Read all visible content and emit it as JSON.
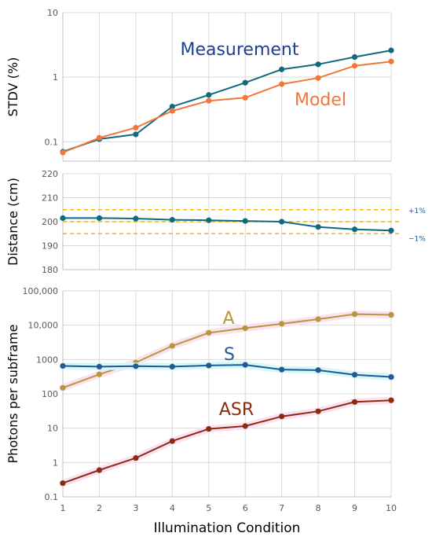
{
  "chart_data": [
    {
      "type": "line",
      "ylabel": "STDV (%)",
      "xlabel": "",
      "yscale": "log",
      "ylim": [
        0.05,
        10
      ],
      "yticks": [
        0.1,
        1,
        10
      ],
      "ytick_labels": [
        "0.1",
        "1",
        "10"
      ],
      "x": [
        1,
        2,
        3,
        4,
        5,
        6,
        7,
        8,
        9,
        10
      ],
      "series": [
        {
          "name": "Measurement",
          "color": "#0f6a80",
          "values": [
            0.07,
            0.11,
            0.13,
            0.35,
            0.53,
            0.82,
            1.32,
            1.58,
            2.05,
            2.6
          ]
        },
        {
          "name": "Model",
          "color": "#f4773a",
          "values": [
            0.068,
            0.115,
            0.165,
            0.3,
            0.43,
            0.48,
            0.78,
            0.97,
            1.5,
            1.75
          ]
        }
      ],
      "annotations": [
        "Measurement",
        "Model"
      ],
      "grid": true
    },
    {
      "type": "line",
      "ylabel": "Distance (cm)",
      "xlabel": "",
      "ylim": [
        180,
        220
      ],
      "yticks": [
        180,
        190,
        200,
        210,
        220
      ],
      "ytick_labels": [
        "180",
        "190",
        "200",
        "210",
        "220"
      ],
      "x": [
        1,
        2,
        3,
        4,
        5,
        6,
        7,
        8,
        9,
        10
      ],
      "series": [
        {
          "color": "#0f6a80",
          "values": [
            201.5,
            201.5,
            201.3,
            200.8,
            200.6,
            200.3,
            200.0,
            197.8,
            196.8,
            196.3
          ]
        }
      ],
      "reference_lines": [
        {
          "value": 205,
          "label": "+1%",
          "color": "#f4b400",
          "style": "dashed"
        },
        {
          "value": 200,
          "label": "",
          "color": "#f4b400",
          "style": "dashed"
        },
        {
          "value": 195,
          "label": "−1%",
          "color": "#f4b400",
          "style": "dashed"
        }
      ],
      "grid": true
    },
    {
      "type": "line",
      "ylabel": "Photons per subframe",
      "xlabel": "Illumination Condition",
      "yscale": "log",
      "ylim": [
        0.1,
        100000
      ],
      "yticks": [
        0.1,
        1,
        10,
        100,
        1000,
        10000,
        100000
      ],
      "ytick_labels": [
        "0.1",
        "1",
        "10",
        "100",
        "1000",
        "10,000",
        "100,000"
      ],
      "x": [
        1,
        2,
        3,
        4,
        5,
        6,
        7,
        8,
        9,
        10
      ],
      "xtick_labels": [
        "1",
        "2",
        "3",
        "4",
        "5",
        "6",
        "7",
        "8",
        "9",
        "10"
      ],
      "series": [
        {
          "name": "A",
          "color": "#b8963a",
          "values": [
            150,
            370,
            820,
            2500,
            6000,
            8200,
            11000,
            15000,
            21000,
            20000
          ]
        },
        {
          "name": "S",
          "color": "#1f5a96",
          "values": [
            650,
            620,
            640,
            620,
            670,
            700,
            510,
            490,
            360,
            310
          ]
        },
        {
          "name": "ASR",
          "color": "#8b2c12",
          "values": [
            0.25,
            0.6,
            1.35,
            4.2,
            9.5,
            11.5,
            22,
            31,
            58,
            65
          ]
        }
      ],
      "annotations": [
        "A",
        "S",
        "ASR"
      ],
      "grid": true
    }
  ]
}
